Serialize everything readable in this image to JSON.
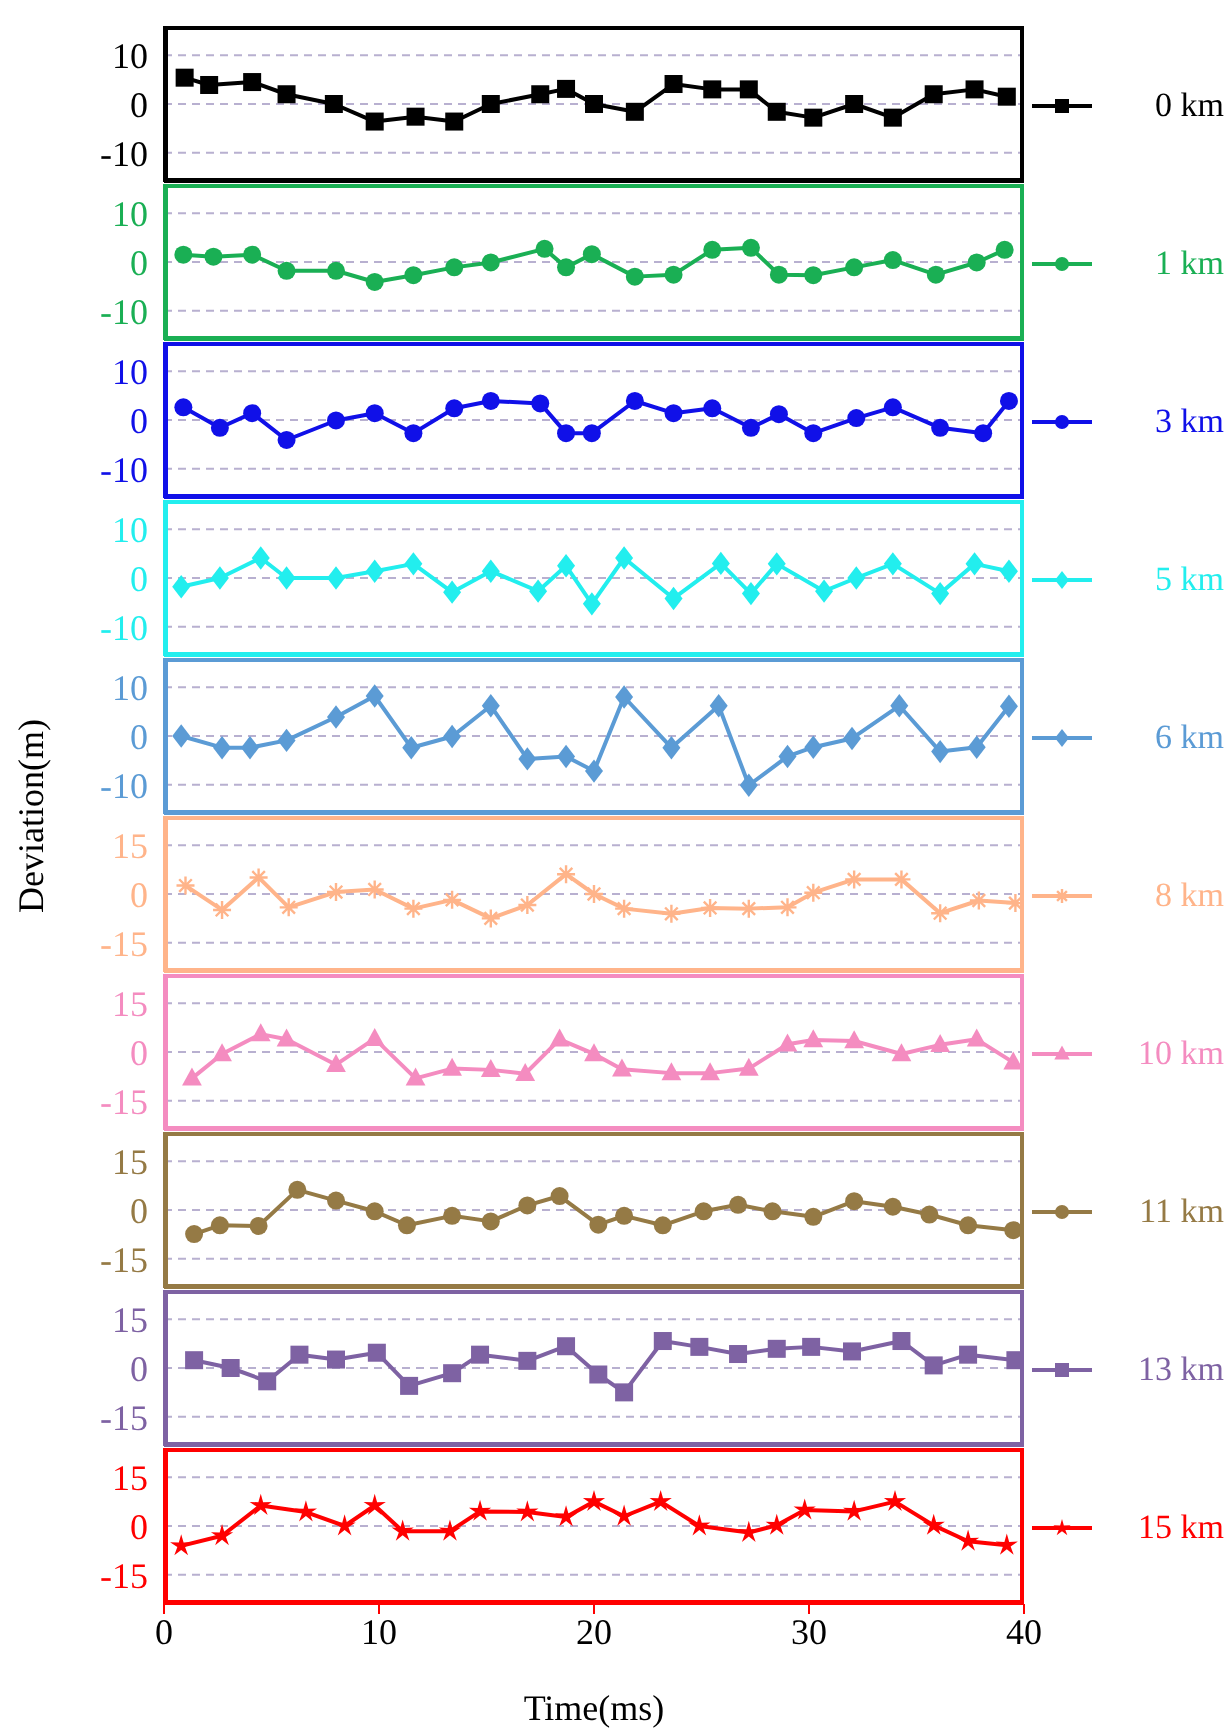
{
  "chart_data": [
    {
      "type": "line",
      "xlim": [
        0,
        40
      ],
      "xticks": [
        0,
        10,
        20,
        30,
        40
      ],
      "ylim": [
        -16,
        16
      ],
      "yticks": [
        -10,
        0,
        10
      ],
      "grid": "y",
      "legend": "right",
      "marker": "square",
      "tick_labels": "y",
      "series": [
        {
          "name": "0 km",
          "color": "#000000",
          "x": [
            0.96,
            2.1,
            4.1,
            5.7,
            7.9,
            9.8,
            11.7,
            13.5,
            15.2,
            17.5,
            18.7,
            20,
            21.9,
            23.7,
            25.5,
            27.2,
            28.5,
            30.2,
            32.1,
            33.9,
            35.8,
            37.7,
            39.2
          ],
          "values": [
            5.4,
            3.9,
            4.5,
            2,
            0,
            -3.6,
            -2.6,
            -3.6,
            0,
            2,
            3.1,
            0,
            -1.6,
            4.1,
            3,
            3,
            -1.6,
            -2.8,
            0,
            -2.8,
            2,
            3,
            1.5
          ]
        }
      ]
    },
    {
      "type": "line",
      "xlim": [
        0,
        40
      ],
      "xticks": [
        0,
        10,
        20,
        30,
        40
      ],
      "ylim": [
        -16,
        16
      ],
      "yticks": [
        -10,
        0,
        10
      ],
      "grid": "y",
      "legend": "right",
      "marker": "circle",
      "tick_labels": "y",
      "series": [
        {
          "name": "1 km",
          "color": "#1aaf54",
          "x": [
            0.9,
            2.3,
            4.1,
            5.7,
            8,
            9.8,
            11.6,
            13.5,
            15.2,
            17.7,
            18.7,
            19.9,
            21.9,
            23.7,
            25.5,
            27.3,
            28.6,
            30.2,
            32.1,
            33.9,
            35.9,
            37.8,
            39.1
          ],
          "values": [
            1.5,
            1.1,
            1.5,
            -1.8,
            -1.8,
            -4.1,
            -2.7,
            -1.1,
            -0.1,
            2.7,
            -1.1,
            1.6,
            -3,
            -2.6,
            2.5,
            2.9,
            -2.6,
            -2.7,
            -1.1,
            0.4,
            -2.6,
            -0.1,
            2.5
          ]
        }
      ]
    },
    {
      "type": "line",
      "xlim": [
        0,
        40
      ],
      "xticks": [
        0,
        10,
        20,
        30,
        40
      ],
      "ylim": [
        -16,
        16
      ],
      "yticks": [
        -10,
        0,
        10
      ],
      "grid": "y",
      "legend": "right",
      "marker": "circle",
      "tick_labels": "y",
      "series": [
        {
          "name": "3 km",
          "color": "#1010e8",
          "x": [
            0.9,
            2.6,
            4.1,
            5.7,
            8,
            9.8,
            11.6,
            13.5,
            15.2,
            17.5,
            18.7,
            19.9,
            21.9,
            23.7,
            25.5,
            27.3,
            28.6,
            30.2,
            32.2,
            33.9,
            36.1,
            38.1,
            39.3
          ],
          "values": [
            2.6,
            -1.6,
            1.4,
            -4.1,
            -0.1,
            1.4,
            -2.7,
            2.4,
            3.9,
            3.4,
            -2.7,
            -2.7,
            3.9,
            1.4,
            2.4,
            -1.6,
            1.2,
            -2.7,
            0.4,
            2.6,
            -1.6,
            -2.7,
            3.9
          ]
        }
      ]
    },
    {
      "type": "line",
      "xlim": [
        0,
        40
      ],
      "xticks": [
        0,
        10,
        20,
        30,
        40
      ],
      "ylim": [
        -16,
        16
      ],
      "yticks": [
        -10,
        0,
        10
      ],
      "grid": "y",
      "legend": "right",
      "marker": "diamond",
      "tick_labels": "y",
      "series": [
        {
          "name": "5 km",
          "color": "#22eeee",
          "x": [
            0.8,
            2.6,
            4.5,
            5.7,
            8,
            9.8,
            11.6,
            13.4,
            15.2,
            17.4,
            18.7,
            19.9,
            21.4,
            23.7,
            25.9,
            27.3,
            28.5,
            30.7,
            32.2,
            33.9,
            36.1,
            37.7,
            39.3
          ],
          "values": [
            -1.8,
            0,
            4.1,
            0,
            0,
            1.4,
            2.9,
            -2.9,
            1.4,
            -2.7,
            2.5,
            -5.3,
            4.1,
            -4.2,
            3,
            -3.2,
            2.9,
            -2.7,
            0,
            2.9,
            -3.2,
            2.9,
            1.4
          ]
        }
      ]
    },
    {
      "type": "line",
      "xlim": [
        0,
        40
      ],
      "xticks": [
        0,
        10,
        20,
        30,
        40
      ],
      "ylim": [
        -16,
        16
      ],
      "yticks": [
        -10,
        0,
        10
      ],
      "grid": "y",
      "legend": "right",
      "marker": "diamond",
      "tick_labels": "y",
      "ylabel": "Deviation(m)",
      "series": [
        {
          "name": "6 km",
          "color": "#5b9bd5",
          "x": [
            0.8,
            2.7,
            4,
            5.7,
            8,
            9.8,
            11.5,
            13.4,
            15.2,
            16.9,
            18.7,
            20,
            21.4,
            23.6,
            25.8,
            27.2,
            29,
            30.2,
            32,
            34.2,
            36.1,
            37.8,
            39.3
          ],
          "values": [
            0,
            -2.4,
            -2.4,
            -0.9,
            3.9,
            8.2,
            -2.4,
            -0.1,
            6.2,
            -4.7,
            -4.2,
            -7.2,
            8,
            -2.4,
            6.2,
            -10.1,
            -4.2,
            -2.3,
            -0.5,
            6.2,
            -3.2,
            -2.3,
            6.1
          ]
        }
      ]
    },
    {
      "type": "line",
      "xlim": [
        0,
        40
      ],
      "xticks": [
        0,
        10,
        20,
        30,
        40
      ],
      "ylim": [
        -24,
        24
      ],
      "yticks": [
        -15,
        0,
        15
      ],
      "grid": "y",
      "legend": "right",
      "marker": "cross",
      "tick_labels": "y",
      "series": [
        {
          "name": "8 km",
          "color": "#ffb48a",
          "x": [
            1,
            2.7,
            4.4,
            5.8,
            8,
            9.8,
            11.6,
            13.4,
            15.2,
            16.9,
            18.7,
            20,
            21.4,
            23.6,
            25.4,
            27.2,
            29,
            30.2,
            32.1,
            34.3,
            36.1,
            37.9,
            39.6
          ],
          "values": [
            2.6,
            -4.9,
            5.1,
            -4.1,
            0.6,
            1.4,
            -4.5,
            -1.8,
            -7.5,
            -3.4,
            6.1,
            0,
            -4.5,
            -6.1,
            -4.3,
            -4.5,
            -4.1,
            0.4,
            4.5,
            4.5,
            -5.9,
            -2,
            -2.8
          ]
        }
      ]
    },
    {
      "type": "line",
      "xlim": [
        0,
        40
      ],
      "xticks": [
        0,
        10,
        20,
        30,
        40
      ],
      "ylim": [
        -24,
        24
      ],
      "yticks": [
        -15,
        0,
        15
      ],
      "grid": "y",
      "legend": "right",
      "marker": "triangle",
      "tick_labels": "y",
      "series": [
        {
          "name": "10 km",
          "color": "#f48cc0",
          "x": [
            1.3,
            2.7,
            4.5,
            5.7,
            8,
            9.8,
            11.7,
            13.4,
            15.2,
            16.8,
            18.4,
            20,
            21.3,
            23.6,
            25.4,
            27.2,
            29,
            30.2,
            32.1,
            34.3,
            36.1,
            37.8,
            39.5
          ],
          "values": [
            -8.1,
            -0.6,
            5.5,
            3.9,
            -3.9,
            4.1,
            -8.1,
            -5.1,
            -5.5,
            -6.7,
            3.9,
            -0.6,
            -5.3,
            -6.5,
            -6.5,
            -5.1,
            2.4,
            3.7,
            3.4,
            -0.6,
            2.2,
            3.9,
            -3.2
          ]
        }
      ]
    },
    {
      "type": "line",
      "xlim": [
        0,
        40
      ],
      "xticks": [
        0,
        10,
        20,
        30,
        40
      ],
      "ylim": [
        -24,
        24
      ],
      "yticks": [
        -15,
        0,
        15
      ],
      "grid": "y",
      "legend": "right",
      "marker": "circle",
      "tick_labels": "y",
      "series": [
        {
          "name": "11 km",
          "color": "#957a45",
          "x": [
            1.4,
            2.6,
            4.4,
            6.2,
            8,
            9.8,
            11.3,
            13.4,
            15.2,
            16.9,
            18.4,
            20.2,
            21.4,
            23.2,
            25.1,
            26.7,
            28.3,
            30.2,
            32.1,
            33.9,
            35.6,
            37.4,
            39.5
          ],
          "values": [
            -7.4,
            -4.7,
            -4.9,
            6.2,
            2.9,
            -0.4,
            -4.7,
            -1.8,
            -3.5,
            1.4,
            4.3,
            -4.5,
            -1.8,
            -4.7,
            -0.4,
            1.6,
            -0.4,
            -2.1,
            2.7,
            1,
            -1.4,
            -4.7,
            -6.2
          ]
        }
      ]
    },
    {
      "type": "line",
      "xlim": [
        0,
        40
      ],
      "xticks": [
        0,
        10,
        20,
        30,
        40
      ],
      "ylim": [
        -24,
        24
      ],
      "yticks": [
        -15,
        0,
        15
      ],
      "grid": "y",
      "legend": "right",
      "marker": "square",
      "tick_labels": "y",
      "series": [
        {
          "name": "13 km",
          "color": "#7e62a3",
          "x": [
            1.4,
            3.1,
            4.8,
            6.3,
            8,
            9.9,
            11.4,
            13.4,
            14.7,
            16.9,
            18.7,
            20.2,
            21.4,
            23.2,
            24.9,
            26.7,
            28.5,
            30.1,
            32,
            34.3,
            35.8,
            37.4,
            39.6
          ],
          "values": [
            2.4,
            0,
            -4.1,
            4.1,
            2.6,
            4.7,
            -5.5,
            -1.6,
            4.1,
            2.2,
            6.7,
            -2,
            -7.5,
            8.3,
            6.5,
            4.3,
            5.9,
            6.5,
            5.1,
            8.3,
            0.8,
            4.1,
            2.4
          ]
        }
      ]
    },
    {
      "type": "line",
      "xlim": [
        0,
        40
      ],
      "xticks": [
        0,
        10,
        20,
        30,
        40
      ],
      "ylim": [
        -24,
        24
      ],
      "yticks": [
        -15,
        0,
        15
      ],
      "grid": "y",
      "legend": "right",
      "marker": "star",
      "xlabel": "Time(ms)",
      "series": [
        {
          "name": "15 km",
          "color": "#ff0000",
          "x": [
            0.8,
            2.7,
            4.5,
            6.6,
            8.4,
            9.8,
            11.1,
            13.3,
            14.7,
            16.9,
            18.7,
            20,
            21.4,
            23.1,
            24.9,
            27.2,
            28.5,
            29.8,
            32.1,
            34,
            35.8,
            37.4,
            39.2
          ],
          "values": [
            -6.1,
            -3,
            6.3,
            4.3,
            0,
            6.3,
            -1.6,
            -1.6,
            4.5,
            4.3,
            2.8,
            7.5,
            3,
            7.5,
            0,
            -2,
            0.2,
            4.9,
            4.5,
            7.5,
            0.2,
            -4.7,
            -5.9
          ]
        }
      ]
    }
  ]
}
